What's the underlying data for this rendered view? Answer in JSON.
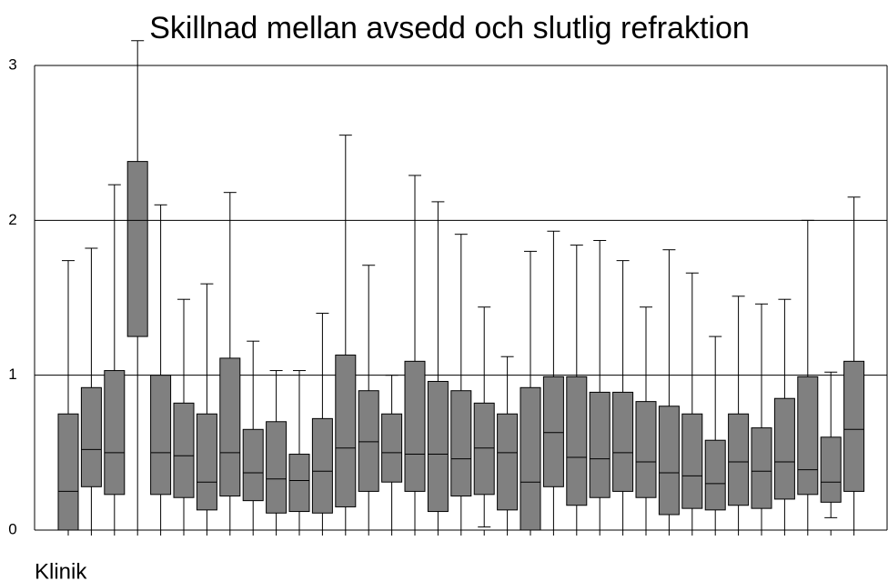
{
  "chart_data": {
    "type": "box",
    "title": "Skillnad mellan avsedd och slutlig refraktion",
    "x_label": "Klinik",
    "categories": [
      null,
      null,
      null,
      null,
      null,
      null,
      null,
      null,
      null,
      null,
      null,
      null,
      null,
      null,
      null,
      null,
      null,
      null,
      null,
      null,
      null,
      null,
      null,
      null,
      null,
      null,
      null,
      null,
      null,
      null,
      null,
      null,
      null,
      null,
      null
    ],
    "color": "#808080",
    "boxes": [
      {
        "min": 0,
        "q1": 0,
        "median": 0.25,
        "q3": 0.75,
        "max": 1.74
      },
      {
        "min": 0,
        "q1": 0.28,
        "median": 0.52,
        "q3": 0.92,
        "max": 1.82
      },
      {
        "min": 0,
        "q1": 0.23,
        "median": 0.5,
        "q3": 1.03,
        "max": 2.23
      },
      {
        "min": 0,
        "q1": 1.25,
        "median": 2.0,
        "q3": 2.38,
        "max": 3.16
      },
      {
        "min": 0,
        "q1": 0.23,
        "median": 0.5,
        "q3": 1.0,
        "max": 2.1
      },
      {
        "min": 0,
        "q1": 0.21,
        "median": 0.48,
        "q3": 0.82,
        "max": 1.49
      },
      {
        "min": 0,
        "q1": 0.13,
        "median": 0.31,
        "q3": 0.75,
        "max": 1.59
      },
      {
        "min": 0,
        "q1": 0.22,
        "median": 0.5,
        "q3": 1.11,
        "max": 2.18
      },
      {
        "min": 0,
        "q1": 0.19,
        "median": 0.37,
        "q3": 0.65,
        "max": 1.22
      },
      {
        "min": 0,
        "q1": 0.11,
        "median": 0.33,
        "q3": 0.7,
        "max": 1.03
      },
      {
        "min": 0,
        "q1": 0.12,
        "median": 0.32,
        "q3": 0.49,
        "max": 1.03
      },
      {
        "min": 0,
        "q1": 0.11,
        "median": 0.38,
        "q3": 0.72,
        "max": 1.4
      },
      {
        "min": 0,
        "q1": 0.15,
        "median": 0.53,
        "q3": 1.13,
        "max": 2.55
      },
      {
        "min": 0,
        "q1": 0.25,
        "median": 0.57,
        "q3": 0.9,
        "max": 1.71
      },
      {
        "min": 0,
        "q1": 0.31,
        "median": 0.5,
        "q3": 0.75,
        "max": 1.0
      },
      {
        "min": 0,
        "q1": 0.25,
        "median": 0.49,
        "q3": 1.09,
        "max": 2.29
      },
      {
        "min": 0,
        "q1": 0.12,
        "median": 0.49,
        "q3": 0.96,
        "max": 2.12
      },
      {
        "min": 0,
        "q1": 0.22,
        "median": 0.46,
        "q3": 0.9,
        "max": 1.91
      },
      {
        "min": 0.02,
        "q1": 0.23,
        "median": 0.53,
        "q3": 0.82,
        "max": 1.44
      },
      {
        "min": 0,
        "q1": 0.13,
        "median": 0.5,
        "q3": 0.75,
        "max": 1.12
      },
      {
        "min": 0,
        "q1": 0,
        "median": 0.31,
        "q3": 0.92,
        "max": 1.8
      },
      {
        "min": 0,
        "q1": 0.28,
        "median": 0.63,
        "q3": 0.99,
        "max": 1.93
      },
      {
        "min": 0,
        "q1": 0.16,
        "median": 0.47,
        "q3": 0.99,
        "max": 1.84
      },
      {
        "min": 0,
        "q1": 0.21,
        "median": 0.46,
        "q3": 0.89,
        "max": 1.87
      },
      {
        "min": 0,
        "q1": 0.25,
        "median": 0.5,
        "q3": 0.89,
        "max": 1.74
      },
      {
        "min": 0,
        "q1": 0.21,
        "median": 0.44,
        "q3": 0.83,
        "max": 1.44
      },
      {
        "min": 0,
        "q1": 0.1,
        "median": 0.37,
        "q3": 0.8,
        "max": 1.81
      },
      {
        "min": 0,
        "q1": 0.14,
        "median": 0.35,
        "q3": 0.75,
        "max": 1.66
      },
      {
        "min": 0,
        "q1": 0.13,
        "median": 0.3,
        "q3": 0.58,
        "max": 1.25
      },
      {
        "min": 0,
        "q1": 0.16,
        "median": 0.44,
        "q3": 0.75,
        "max": 1.51
      },
      {
        "min": 0,
        "q1": 0.14,
        "median": 0.38,
        "q3": 0.66,
        "max": 1.46
      },
      {
        "min": 0,
        "q1": 0.2,
        "median": 0.44,
        "q3": 0.85,
        "max": 1.49
      },
      {
        "min": 0,
        "q1": 0.23,
        "median": 0.39,
        "q3": 0.99,
        "max": 2.0
      },
      {
        "min": 0.08,
        "q1": 0.18,
        "median": 0.31,
        "q3": 0.6,
        "max": 1.02
      },
      {
        "min": 0,
        "q1": 0.25,
        "median": 0.65,
        "q3": 1.09,
        "max": 2.15
      }
    ],
    "ylim": [
      0,
      3
    ],
    "yticks": [
      0,
      1,
      2,
      3
    ],
    "grid": true
  }
}
